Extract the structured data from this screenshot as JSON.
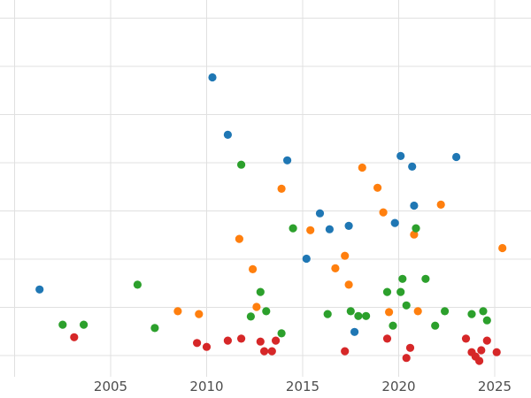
{
  "figure": {
    "background_color": "#ffffff",
    "grid_color": "#e0e0e0",
    "tick_label_color": "#4d4d4d"
  },
  "chart_data": {
    "type": "scatter",
    "title": "",
    "subtitle": "",
    "xlabel": "",
    "ylabel": "",
    "legend": "none",
    "grid": "on",
    "x_ticks": [
      2005,
      2010,
      2015,
      2020,
      2025
    ],
    "x_gridlines": [
      2000,
      2005,
      2010,
      2015,
      2020,
      2025
    ],
    "xlim": [
      1999.2,
      2026.9
    ],
    "y_axis": {
      "labels_visible": false,
      "unit": "gridline steps (0 = lowest visible gridline)"
    },
    "y_gridlines": [
      0,
      1,
      2,
      3,
      4,
      5,
      6,
      7
    ],
    "ylim": [
      -0.85,
      7.35
    ],
    "series": [
      {
        "name": "blue",
        "color": "#1f77b4",
        "points": [
          [
            2001.3,
            1.37
          ],
          [
            2010.3,
            5.77
          ],
          [
            2011.1,
            4.58
          ],
          [
            2014.2,
            4.05
          ],
          [
            2015.2,
            2.01
          ],
          [
            2015.9,
            2.95
          ],
          [
            2016.4,
            2.62
          ],
          [
            2017.4,
            2.69
          ],
          [
            2017.7,
            0.49
          ],
          [
            2019.8,
            2.75
          ],
          [
            2020.1,
            4.14
          ],
          [
            2020.7,
            3.92
          ],
          [
            2020.8,
            3.11
          ],
          [
            2023.0,
            4.12
          ]
        ]
      },
      {
        "name": "orange",
        "color": "#ff7f0e",
        "points": [
          [
            2008.5,
            0.92
          ],
          [
            2009.6,
            0.86
          ],
          [
            2011.7,
            2.42
          ],
          [
            2012.4,
            1.79
          ],
          [
            2012.6,
            1.01
          ],
          [
            2013.9,
            3.46
          ],
          [
            2015.4,
            2.6
          ],
          [
            2016.7,
            1.81
          ],
          [
            2017.2,
            2.07
          ],
          [
            2017.4,
            1.47
          ],
          [
            2018.1,
            3.9
          ],
          [
            2018.9,
            3.48
          ],
          [
            2019.2,
            2.97
          ],
          [
            2019.5,
            0.9
          ],
          [
            2020.8,
            2.51
          ],
          [
            2021.0,
            0.92
          ],
          [
            2022.2,
            3.13
          ],
          [
            2025.4,
            2.23
          ]
        ]
      },
      {
        "name": "green",
        "color": "#2ca02c",
        "points": [
          [
            2002.5,
            0.64
          ],
          [
            2003.6,
            0.64
          ],
          [
            2006.4,
            1.47
          ],
          [
            2007.3,
            0.57
          ],
          [
            2011.8,
            3.96
          ],
          [
            2012.3,
            0.81
          ],
          [
            2012.8,
            1.32
          ],
          [
            2013.1,
            0.92
          ],
          [
            2013.9,
            0.46
          ],
          [
            2014.5,
            2.64
          ],
          [
            2016.3,
            0.86
          ],
          [
            2017.5,
            0.92
          ],
          [
            2017.9,
            0.82
          ],
          [
            2018.3,
            0.82
          ],
          [
            2019.4,
            1.32
          ],
          [
            2019.7,
            0.62
          ],
          [
            2020.1,
            1.32
          ],
          [
            2020.2,
            1.59
          ],
          [
            2020.4,
            1.04
          ],
          [
            2020.9,
            2.64
          ],
          [
            2021.4,
            1.59
          ],
          [
            2021.9,
            0.62
          ],
          [
            2022.4,
            0.92
          ],
          [
            2023.8,
            0.86
          ],
          [
            2024.4,
            0.92
          ],
          [
            2024.6,
            0.73
          ]
        ]
      },
      {
        "name": "red",
        "color": "#d62728",
        "points": [
          [
            2003.1,
            0.38
          ],
          [
            2009.5,
            0.26
          ],
          [
            2010.0,
            0.18
          ],
          [
            2011.1,
            0.31
          ],
          [
            2011.8,
            0.35
          ],
          [
            2012.8,
            0.29
          ],
          [
            2013.0,
            0.09
          ],
          [
            2013.4,
            0.09
          ],
          [
            2013.6,
            0.31
          ],
          [
            2017.2,
            0.09
          ],
          [
            2019.4,
            0.35
          ],
          [
            2020.4,
            -0.05
          ],
          [
            2020.6,
            0.16
          ],
          [
            2023.5,
            0.35
          ],
          [
            2023.8,
            0.07
          ],
          [
            2024.0,
            -0.02
          ],
          [
            2024.2,
            -0.11
          ],
          [
            2024.3,
            0.11
          ],
          [
            2024.6,
            0.31
          ],
          [
            2025.1,
            0.07
          ]
        ]
      }
    ]
  }
}
